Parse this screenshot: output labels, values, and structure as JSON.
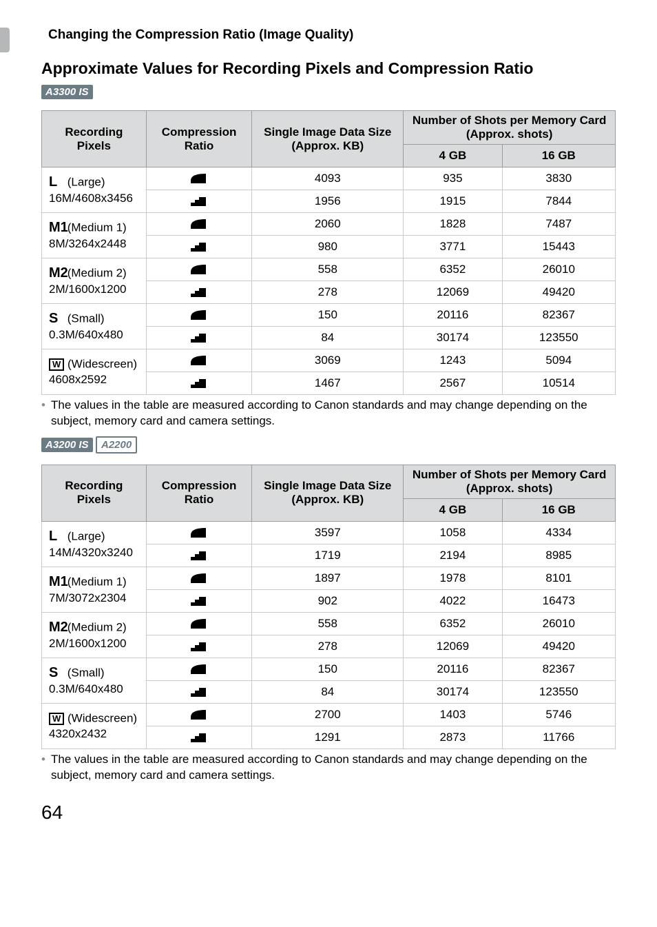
{
  "section_title": "Changing the Compression Ratio (Image Quality)",
  "heading": "Approximate Values for Recording Pixels and Compression Ratio",
  "model_badges": {
    "a3300": "A3300 IS",
    "a3200": "A3200 IS",
    "a2200": "A2200"
  },
  "columns": {
    "rec": "Recording Pixels",
    "comp": "Compression Ratio",
    "size": "Single Image Data Size (Approx. KB)",
    "shots": "Number of Shots per Memory Card (Approx. shots)",
    "c4": "4 GB",
    "c16": "16 GB"
  },
  "labels": {
    "L": "(Large)",
    "M1": "(Medium 1)",
    "M2": "(Medium 2)",
    "S": "(Small)",
    "W": "(Widescreen)"
  },
  "table1": {
    "rows": [
      {
        "icon": "L",
        "res": "16M/4608x3456",
        "fine": {
          "size": "4093",
          "c4": "935",
          "c16": "3830"
        },
        "norm": {
          "size": "1956",
          "c4": "1915",
          "c16": "7844"
        }
      },
      {
        "icon": "M1",
        "res": "8M/3264x2448",
        "fine": {
          "size": "2060",
          "c4": "1828",
          "c16": "7487"
        },
        "norm": {
          "size": "980",
          "c4": "3771",
          "c16": "15443"
        }
      },
      {
        "icon": "M2",
        "res": "2M/1600x1200",
        "fine": {
          "size": "558",
          "c4": "6352",
          "c16": "26010"
        },
        "norm": {
          "size": "278",
          "c4": "12069",
          "c16": "49420"
        }
      },
      {
        "icon": "S",
        "res": "0.3M/640x480",
        "fine": {
          "size": "150",
          "c4": "20116",
          "c16": "82367"
        },
        "norm": {
          "size": "84",
          "c4": "30174",
          "c16": "123550"
        }
      },
      {
        "icon": "W",
        "res": "4608x2592",
        "fine": {
          "size": "3069",
          "c4": "1243",
          "c16": "5094"
        },
        "norm": {
          "size": "1467",
          "c4": "2567",
          "c16": "10514"
        }
      }
    ]
  },
  "table2": {
    "rows": [
      {
        "icon": "L",
        "res": "14M/4320x3240",
        "fine": {
          "size": "3597",
          "c4": "1058",
          "c16": "4334"
        },
        "norm": {
          "size": "1719",
          "c4": "2194",
          "c16": "8985"
        }
      },
      {
        "icon": "M1",
        "res": "7M/3072x2304",
        "fine": {
          "size": "1897",
          "c4": "1978",
          "c16": "8101"
        },
        "norm": {
          "size": "902",
          "c4": "4022",
          "c16": "16473"
        }
      },
      {
        "icon": "M2",
        "res": "2M/1600x1200",
        "fine": {
          "size": "558",
          "c4": "6352",
          "c16": "26010"
        },
        "norm": {
          "size": "278",
          "c4": "12069",
          "c16": "49420"
        }
      },
      {
        "icon": "S",
        "res": "0.3M/640x480",
        "fine": {
          "size": "150",
          "c4": "20116",
          "c16": "82367"
        },
        "norm": {
          "size": "84",
          "c4": "30174",
          "c16": "123550"
        }
      },
      {
        "icon": "W",
        "res": "4320x2432",
        "fine": {
          "size": "2700",
          "c4": "1403",
          "c16": "5746"
        },
        "norm": {
          "size": "1291",
          "c4": "2873",
          "c16": "11766"
        }
      }
    ]
  },
  "note": "The values in the table are measured according to Canon standards and may change depending on the subject, memory card and camera settings.",
  "page_number": "64"
}
